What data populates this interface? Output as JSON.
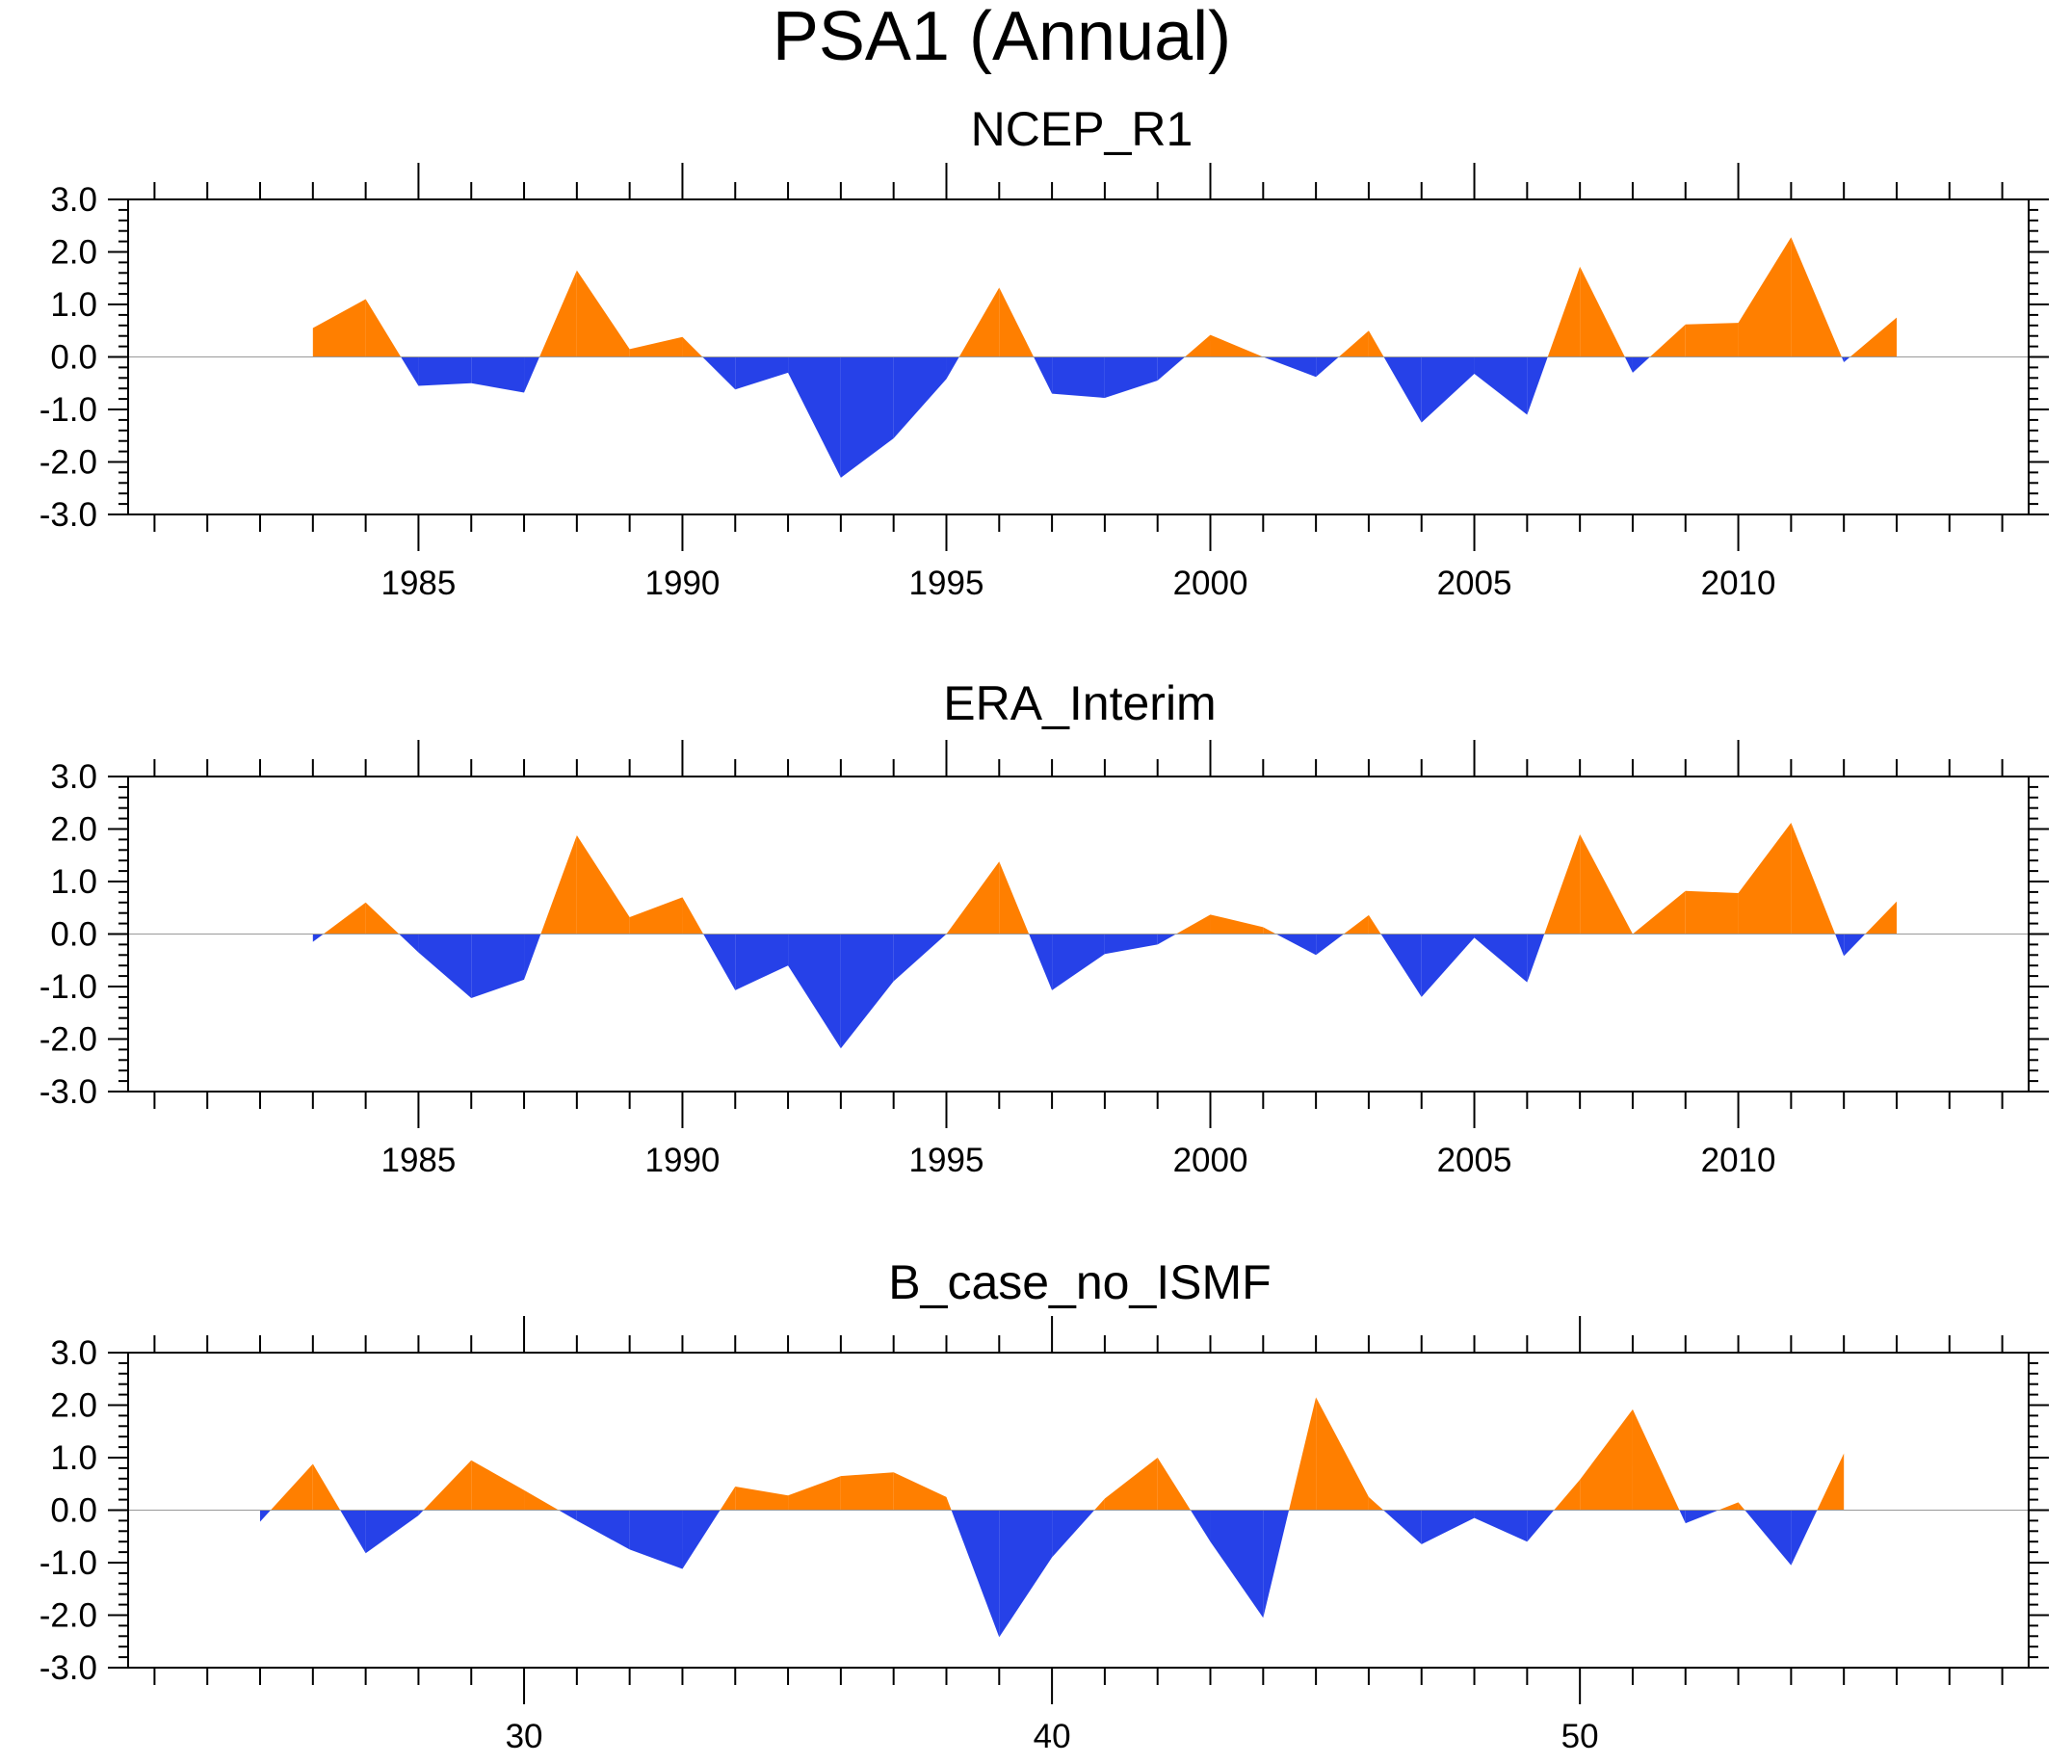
{
  "figure_title": "PSA1 (Annual)",
  "colors": {
    "positive": "#ff7f00",
    "negative": "#2641e8",
    "frame": "#000000",
    "zero_line": "#999999"
  },
  "chart_data": [
    {
      "type": "area",
      "title": "NCEP_R1",
      "xlabel": "",
      "ylabel": "",
      "x": [
        1983,
        1984,
        1985,
        1986,
        1987,
        1988,
        1989,
        1990,
        1991,
        1992,
        1993,
        1994,
        1995,
        1996,
        1997,
        1998,
        1999,
        2000,
        2001,
        2002,
        2003,
        2004,
        2005,
        2006,
        2007,
        2008,
        2009,
        2010,
        2011,
        2012,
        2013
      ],
      "values": [
        0.55,
        1.1,
        -0.55,
        -0.5,
        -0.68,
        1.65,
        0.15,
        0.38,
        -0.62,
        -0.3,
        -2.3,
        -1.55,
        -0.42,
        1.32,
        -0.7,
        -0.78,
        -0.45,
        0.42,
        0.0,
        -0.38,
        0.5,
        -1.25,
        -0.32,
        -1.1,
        1.72,
        -0.3,
        0.62,
        0.65,
        2.28,
        -0.1,
        0.75
      ],
      "xlim": [
        1979.5,
        2015.5
      ],
      "ylim": [
        -3.0,
        3.0
      ],
      "major_x_ticks": [
        1985,
        1990,
        1995,
        2000,
        2005,
        2010
      ],
      "minor_x_ticks": [
        1980,
        1981,
        1982,
        1983,
        1984,
        1986,
        1987,
        1988,
        1989,
        1991,
        1992,
        1993,
        1994,
        1996,
        1997,
        1998,
        1999,
        2001,
        2002,
        2003,
        2004,
        2006,
        2007,
        2008,
        2009,
        2011,
        2012,
        2013,
        2014,
        2015
      ],
      "x_tick_labels": [
        "1985",
        "1990",
        "1995",
        "2000",
        "2005",
        "2010"
      ],
      "y_ticks": [
        3.0,
        2.0,
        1.0,
        0.0,
        -1.0,
        -2.0,
        -3.0
      ],
      "y_tick_labels": [
        "3.0",
        "2.0",
        "1.0",
        "0.0",
        "-1.0",
        "-2.0",
        "-3.0"
      ]
    },
    {
      "type": "area",
      "title": "ERA_Interim",
      "xlabel": "",
      "ylabel": "",
      "x": [
        1983,
        1984,
        1985,
        1986,
        1987,
        1988,
        1989,
        1990,
        1991,
        1992,
        1993,
        1994,
        1995,
        1996,
        1997,
        1998,
        1999,
        2000,
        2001,
        2002,
        2003,
        2004,
        2005,
        2006,
        2007,
        2008,
        2009,
        2010,
        2011,
        2012,
        2013
      ],
      "values": [
        -0.15,
        0.6,
        -0.35,
        -1.22,
        -0.87,
        1.88,
        0.32,
        0.7,
        -1.07,
        -0.6,
        -2.18,
        -0.9,
        0.0,
        1.38,
        -1.07,
        -0.38,
        -0.2,
        0.37,
        0.13,
        -0.4,
        0.36,
        -1.2,
        -0.07,
        -0.92,
        1.9,
        0.0,
        0.82,
        0.78,
        2.12,
        -0.42,
        0.62
      ],
      "xlim": [
        1979.5,
        2015.5
      ],
      "ylim": [
        -3.0,
        3.0
      ],
      "major_x_ticks": [
        1985,
        1990,
        1995,
        2000,
        2005,
        2010
      ],
      "minor_x_ticks": [
        1980,
        1981,
        1982,
        1983,
        1984,
        1986,
        1987,
        1988,
        1989,
        1991,
        1992,
        1993,
        1994,
        1996,
        1997,
        1998,
        1999,
        2001,
        2002,
        2003,
        2004,
        2006,
        2007,
        2008,
        2009,
        2011,
        2012,
        2013,
        2014,
        2015
      ],
      "x_tick_labels": [
        "1985",
        "1990",
        "1995",
        "2000",
        "2005",
        "2010"
      ],
      "y_ticks": [
        3.0,
        2.0,
        1.0,
        0.0,
        -1.0,
        -2.0,
        -3.0
      ],
      "y_tick_labels": [
        "3.0",
        "2.0",
        "1.0",
        "0.0",
        "-1.0",
        "-2.0",
        "-3.0"
      ]
    },
    {
      "type": "area",
      "title": "B_case_no_ISMF",
      "xlabel": "",
      "ylabel": "",
      "x": [
        25,
        26,
        27,
        28,
        29,
        30,
        31,
        32,
        33,
        34,
        35,
        36,
        37,
        38,
        39,
        40,
        41,
        42,
        43,
        44,
        45,
        46,
        47,
        48,
        49,
        50,
        51,
        52,
        53,
        54,
        55
      ],
      "values": [
        -0.22,
        0.88,
        -0.82,
        -0.1,
        0.95,
        0.38,
        -0.2,
        -0.75,
        -1.12,
        0.45,
        0.28,
        0.65,
        0.72,
        0.25,
        -2.42,
        -0.9,
        0.22,
        1.0,
        -0.6,
        -2.05,
        2.15,
        0.25,
        -0.65,
        -0.15,
        -0.6,
        0.58,
        1.92,
        -0.25,
        0.15,
        -1.05,
        1.08
      ],
      "xlim": [
        22.5,
        58.5
      ],
      "ylim": [
        -3.0,
        3.0
      ],
      "major_x_ticks": [
        30,
        40,
        50
      ],
      "minor_x_ticks": [
        23,
        24,
        25,
        26,
        27,
        28,
        29,
        31,
        32,
        33,
        34,
        35,
        36,
        37,
        38,
        39,
        41,
        42,
        43,
        44,
        45,
        46,
        47,
        48,
        49,
        51,
        52,
        53,
        54,
        55,
        56,
        57,
        58
      ],
      "x_tick_labels": [
        "30",
        "40",
        "50"
      ],
      "y_ticks": [
        3.0,
        2.0,
        1.0,
        0.0,
        -1.0,
        -2.0,
        -3.0
      ],
      "y_tick_labels": [
        "3.0",
        "2.0",
        "1.0",
        "0.0",
        "-1.0",
        "-2.0",
        "-3.0"
      ]
    }
  ]
}
